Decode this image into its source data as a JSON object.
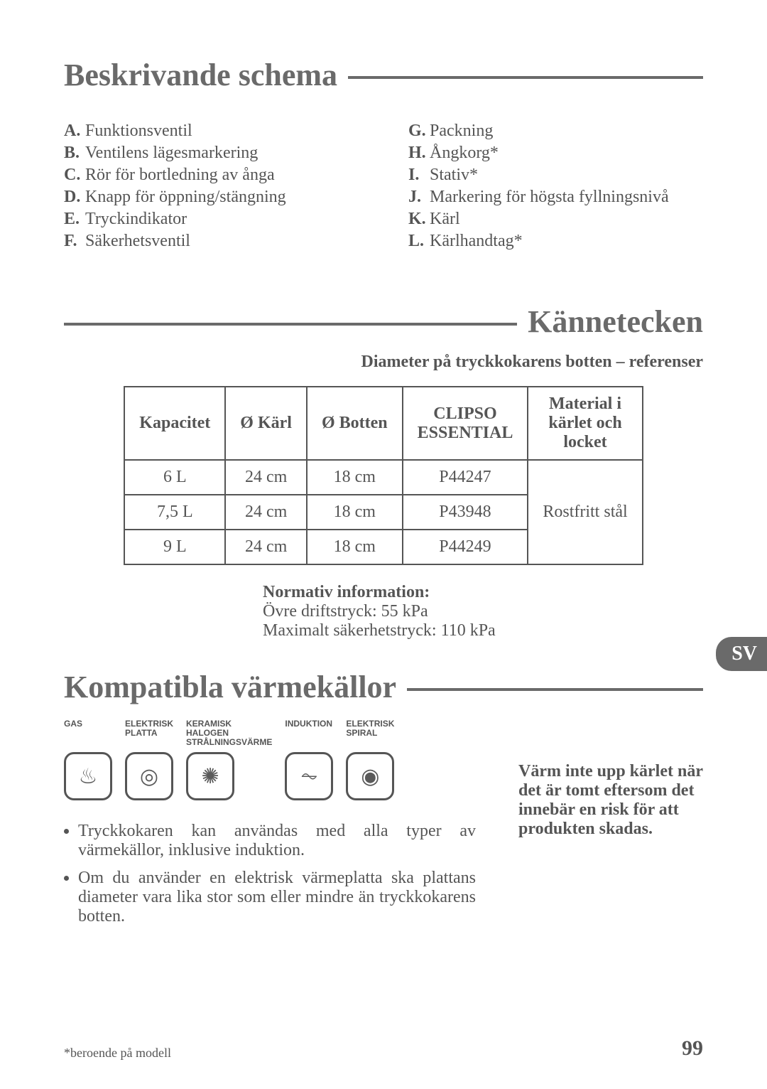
{
  "headings": {
    "schema": "Beskrivande schema",
    "kannetecken": "Kännetecken",
    "heat": "Kompatibla värmekällor"
  },
  "schema_left": [
    {
      "k": "A.",
      "v": "Funktionsventil"
    },
    {
      "k": "B.",
      "v": "Ventilens lägesmarkering"
    },
    {
      "k": "C.",
      "v": "Rör för bortledning av ånga"
    },
    {
      "k": "D.",
      "v": "Knapp för öppning/stängning"
    },
    {
      "k": "E.",
      "v": "Tryckindikator"
    },
    {
      "k": "F.",
      "v": "Säkerhetsventil"
    }
  ],
  "schema_right": [
    {
      "k": "G.",
      "v": "Packning"
    },
    {
      "k": "H.",
      "v": "Ångkorg*"
    },
    {
      "k": "I.",
      "v": "Stativ*"
    },
    {
      "k": "J.",
      "v": "Markering för högsta fyllningsnivå"
    },
    {
      "k": "K.",
      "v": "Kärl"
    },
    {
      "k": "L.",
      "v": "Kärlhandtag*"
    }
  ],
  "table": {
    "subtitle": "Diameter på tryckkokarens botten – referenser",
    "headers": [
      "Kapacitet",
      "Ø Kärl",
      "Ø Botten",
      "CLIPSO ESSENTIAL",
      "Material i kärlet och locket"
    ],
    "rows": [
      [
        "6 L",
        "24 cm",
        "18 cm",
        "P44247"
      ],
      [
        "7,5 L",
        "24 cm",
        "18 cm",
        "P43948"
      ],
      [
        "9 L",
        "24 cm",
        "18 cm",
        "P44249"
      ]
    ],
    "material": "Rostfritt stål"
  },
  "normativ": {
    "title": "Normativ information:",
    "l1": "Övre driftstryck: 55 kPa",
    "l2": "Maximalt säkerhetstryck: 110 kPa"
  },
  "heat_sources": [
    {
      "label": "GAS",
      "glyph": "♨"
    },
    {
      "label": "ELEKTRISK PLATTA",
      "glyph": "◎"
    },
    {
      "label": "KERAMISK HALOGEN STRÅLNINGSVÄRME",
      "glyph": "✺"
    },
    {
      "label": "INDUKTION",
      "glyph": "⏦"
    },
    {
      "label": "ELEKTRISK SPIRAL",
      "glyph": "◉"
    }
  ],
  "bullets": [
    "Tryckkokaren kan användas med alla typer av värmekällor, inklusive induktion.",
    "Om du använder en elektrisk värmeplatta ska plattans diameter vara lika stor som eller mindre än tryckkokarens botten."
  ],
  "warning": "Värm inte upp kärlet när det är tomt eftersom det innebär en risk för att produkten skadas.",
  "lang_tab": "SV",
  "footnote": "*beroende på modell",
  "page": "99"
}
